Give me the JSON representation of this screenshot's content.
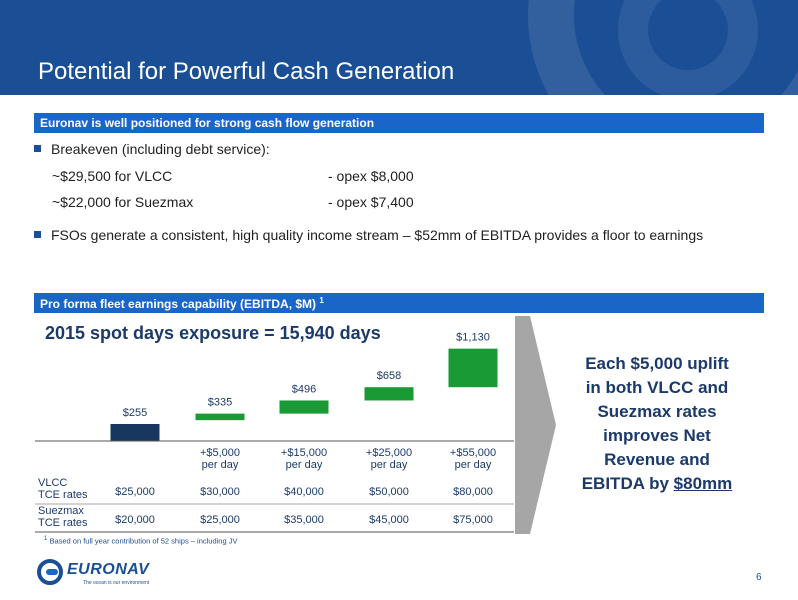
{
  "slide": {
    "title": "Potential for Powerful Cash Generation",
    "page_number": "6"
  },
  "section1": {
    "header": "Euronav is well positioned for strong cash flow generation",
    "breakeven_label": "Breakeven (including debt service):",
    "rows": [
      {
        "rate": "~$29,500 for VLCC",
        "opex": "- opex $8,000"
      },
      {
        "rate": "~$22,000 for Suezmax",
        "opex": "- opex $7,400"
      }
    ],
    "fso_text": "FSOs generate a consistent, high quality income stream – $52mm of EBITDA provides a floor to earnings"
  },
  "section2": {
    "header": "Pro forma fleet earnings capability (EBITDA, $M)",
    "header_footnote_mark": "1",
    "chart_title": "2015 spot days exposure = 15,940 days",
    "footnote_mark": "1",
    "footnote": "Based on full year contribution of 52 ships – including JV",
    "callout_lines": [
      "Each $5,000 uplift",
      "in both VLCC and",
      "Suezmax rates",
      "improves Net",
      "Revenue and",
      "EBITDA by "
    ],
    "callout_emphasis": "$80mm"
  },
  "chart_data": {
    "type": "bar",
    "title": "2015 spot days exposure = 15,940 days",
    "categories": [
      "",
      "+$5,000 per day",
      "+$15,000 per day",
      "+$25,000 per day",
      "+$55,000 per day"
    ],
    "category_lines": [
      [],
      [
        "+$5,000",
        "per day"
      ],
      [
        "+$15,000",
        "per day"
      ],
      [
        "+$25,000",
        "per day"
      ],
      [
        "+$55,000",
        "per day"
      ]
    ],
    "values": [
      255,
      335,
      496,
      658,
      1130
    ],
    "value_labels": [
      "$255",
      "$335",
      "$496",
      "$658",
      "$1,130"
    ],
    "bar_colors": [
      "#17375e",
      "#1a9a35",
      "#1a9a35",
      "#1a9a35",
      "#1a9a35"
    ],
    "ylim": [
      0,
      1150
    ],
    "table": {
      "rows": [
        {
          "label": [
            "VLCC",
            "TCE rates"
          ],
          "values": [
            "$25,000",
            "$30,000",
            "$40,000",
            "$50,000",
            "$80,000"
          ]
        },
        {
          "label": [
            "Suezmax",
            "TCE rates"
          ],
          "values": [
            "$20,000",
            "$25,000",
            "$35,000",
            "$45,000",
            "$75,000"
          ]
        }
      ]
    }
  },
  "footer": {
    "logo_name": "EURONAV",
    "logo_tagline": "The ocean is our environment"
  },
  "colors": {
    "header_blue": "#1b4f95",
    "bar_blue": "#1a66c8",
    "base_bar": "#17375e",
    "uplift_bar": "#1a9a35",
    "arrow_gray": "#a6a6a6"
  }
}
